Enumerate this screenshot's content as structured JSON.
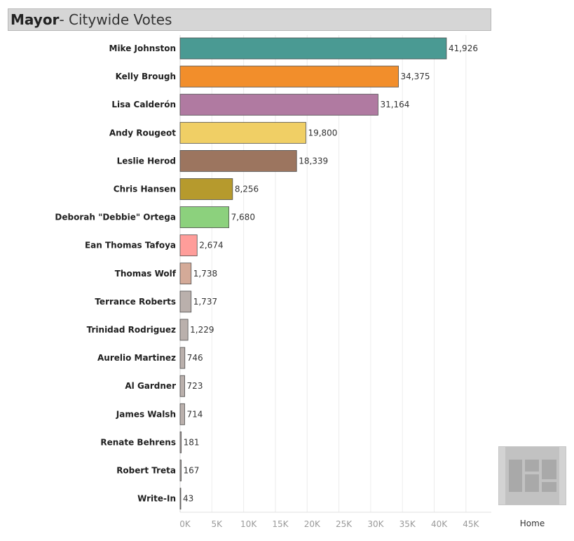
{
  "title": {
    "bold": "Mayor",
    "rest": " - Citywide Votes"
  },
  "home": {
    "label": "Home",
    "icon": "dashboard-layout-icon"
  },
  "chart_data": {
    "type": "bar",
    "orientation": "horizontal",
    "categories": [
      "Mike Johnston",
      "Kelly Brough",
      "Lisa Calderón",
      "Andy Rougeot",
      "Leslie Herod",
      "Chris Hansen",
      "Deborah \"Debbie\" Ortega",
      "Ean Thomas Tafoya",
      "Thomas Wolf",
      "Terrance Roberts",
      "Trinidad Rodriguez",
      "Aurelio Martinez",
      "Al Gardner",
      "James Walsh",
      "Renate Behrens",
      "Robert Treta",
      "Write-In"
    ],
    "values": [
      41926,
      34375,
      31164,
      19800,
      18339,
      8256,
      7680,
      2674,
      1738,
      1737,
      1229,
      746,
      723,
      714,
      181,
      167,
      43
    ],
    "value_labels": [
      "41,926",
      "34,375",
      "31,164",
      "19,800",
      "18,339",
      "8,256",
      "7,680",
      "2,674",
      "1,738",
      "1,737",
      "1,229",
      "746",
      "723",
      "714",
      "181",
      "167",
      "43"
    ],
    "colors": [
      "#4a9a93",
      "#f28e2b",
      "#b07aa1",
      "#f0cf65",
      "#9c755f",
      "#b69a2d",
      "#8cd17d",
      "#ff9d9a",
      "#d4aa98",
      "#bab0ac",
      "#bab0ac",
      "#bab0ac",
      "#bab0ac",
      "#bab0ac",
      "#bab0ac",
      "#bab0ac",
      "#bab0ac"
    ],
    "xlim": [
      0,
      48000
    ],
    "x_ticks": [
      0,
      5000,
      10000,
      15000,
      20000,
      25000,
      30000,
      35000,
      40000,
      45000
    ],
    "x_tick_labels": [
      "0K",
      "5K",
      "10K",
      "15K",
      "20K",
      "25K",
      "30K",
      "35K",
      "40K",
      "45K"
    ],
    "grid": true
  }
}
